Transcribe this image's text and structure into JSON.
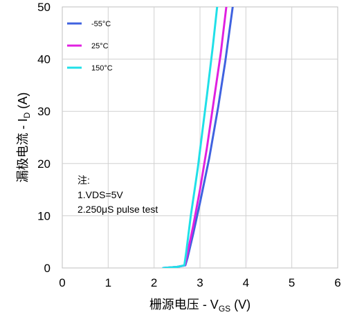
{
  "chart_data": {
    "type": "line",
    "xlim": [
      0,
      6
    ],
    "ylim": [
      0,
      50
    ],
    "x_ticks": [
      "0",
      "1",
      "2",
      "3",
      "4",
      "5",
      "6"
    ],
    "y_ticks": [
      "0",
      "10",
      "20",
      "30",
      "40",
      "50"
    ],
    "grid": true,
    "legend_position": "top-left",
    "xlabel": {
      "main": "栅源电压 - V",
      "sub": "GS",
      "suffix": " (V)"
    },
    "ylabel": {
      "main": "漏极电流 - I",
      "sub": "D",
      "suffix": " (A)"
    },
    "annotation": [
      "注:",
      "1.VDS=5V",
      "2.250μS pulse test"
    ],
    "series": [
      {
        "name": "-55°C",
        "color": "#3F62E0",
        "x": [
          2.2,
          2.5,
          2.68,
          2.73,
          2.85,
          3.0,
          3.2,
          3.4,
          3.55,
          3.72
        ],
        "y": [
          0.0,
          0.2,
          0.5,
          2.0,
          6.5,
          12.5,
          21.0,
          31.0,
          39.5,
          50.5
        ]
      },
      {
        "name": "25°C",
        "color": "#E020E0",
        "x": [
          2.2,
          2.5,
          2.67,
          2.72,
          2.85,
          3.0,
          3.15,
          3.3,
          3.45,
          3.58
        ],
        "y": [
          0.0,
          0.2,
          0.5,
          2.5,
          8.0,
          15.0,
          23.0,
          32.0,
          41.0,
          50.5
        ]
      },
      {
        "name": "150°C",
        "color": "#20E0E8",
        "x": [
          2.2,
          2.5,
          2.66,
          2.7,
          2.8,
          2.95,
          3.05,
          3.15,
          3.28,
          3.38
        ],
        "y": [
          0.0,
          0.2,
          0.5,
          3.0,
          10.0,
          19.0,
          26.0,
          33.0,
          42.5,
          50.5
        ]
      }
    ]
  }
}
